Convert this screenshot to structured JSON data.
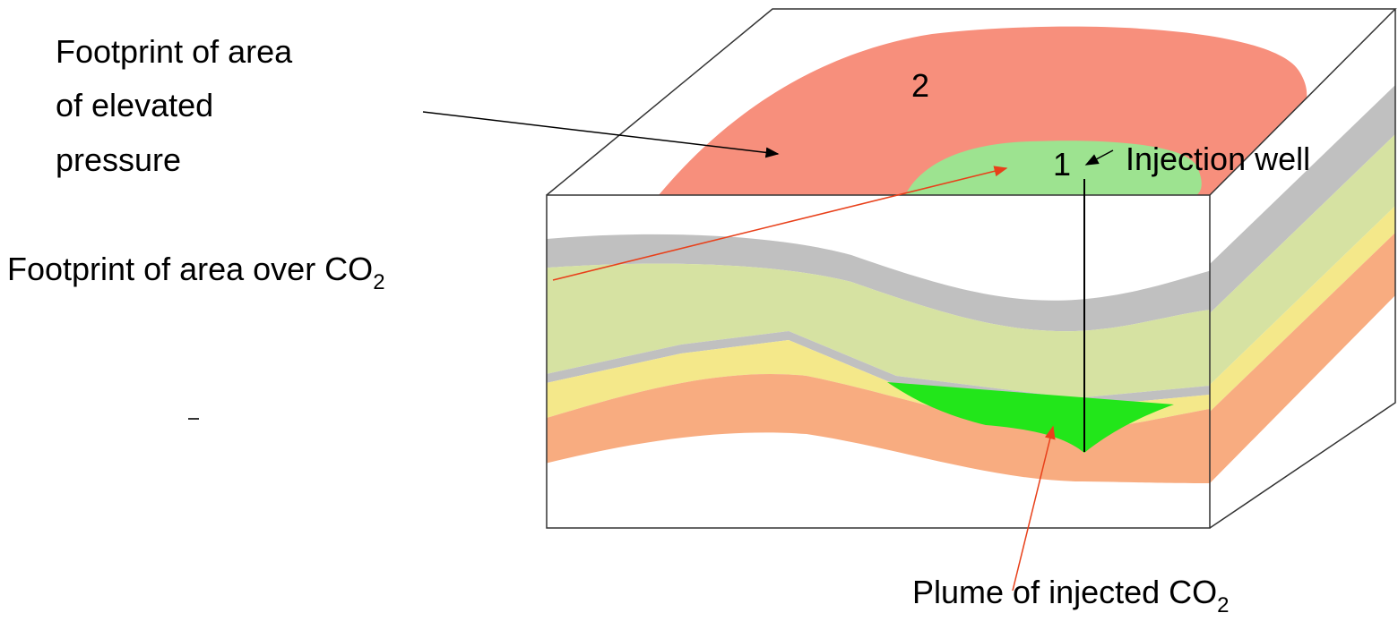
{
  "labels": {
    "pressure_footprint": {
      "lines": [
        "Footprint of area",
        "of elevated",
        "pressure"
      ]
    },
    "co2_footprint": {
      "text": "Footprint of area  over CO",
      "subscript": "2"
    },
    "plume": {
      "text": "Plume of injected CO",
      "subscript": "2"
    },
    "injection_well": "Injection well",
    "zone_1": "1",
    "zone_2": "2"
  }
}
